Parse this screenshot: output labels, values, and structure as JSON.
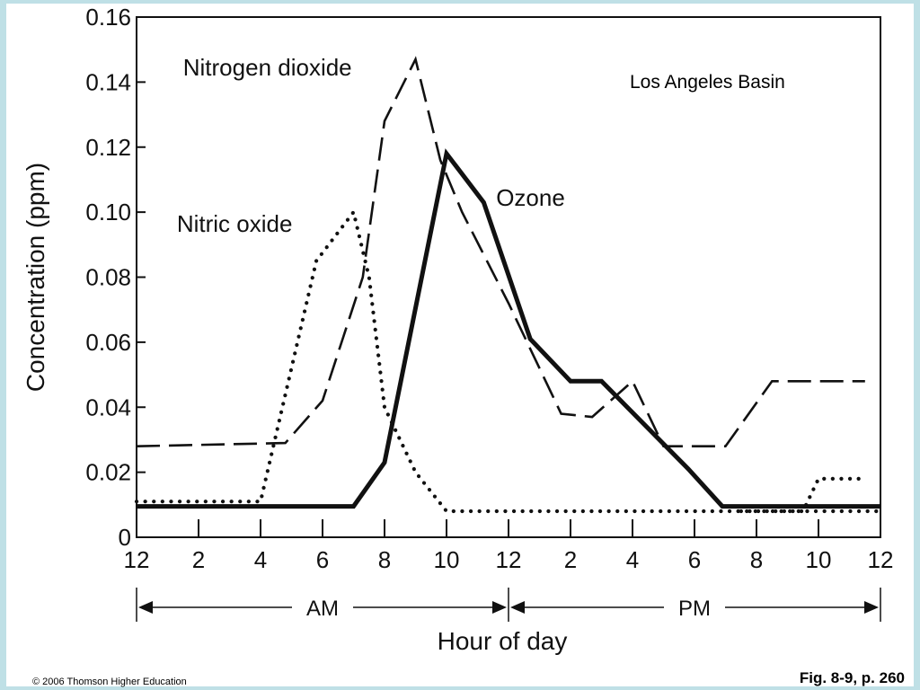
{
  "chart_data": {
    "type": "line",
    "title": "Los Angeles Basin",
    "xlabel": "Hour of day",
    "ylabel": "Concentration (ppm)",
    "xlim": [
      0,
      24
    ],
    "ylim": [
      0,
      0.16
    ],
    "x_tick_values": [
      0,
      2,
      4,
      6,
      8,
      10,
      12,
      14,
      16,
      18,
      20,
      22,
      24
    ],
    "x_tick_labels": [
      "12",
      "2",
      "4",
      "6",
      "8",
      "10",
      "12",
      "2",
      "4",
      "6",
      "8",
      "10",
      "12"
    ],
    "y_ticks": [
      0,
      0.02,
      0.04,
      0.06,
      0.08,
      0.1,
      0.12,
      0.14,
      0.16
    ],
    "y_tick_labels": [
      "0",
      "0.02",
      "0.04",
      "0.06",
      "0.08",
      "0.10",
      "0.12",
      "0.14",
      "0.16"
    ],
    "periods": [
      {
        "label": "AM",
        "from": 0,
        "to": 12
      },
      {
        "label": "PM",
        "from": 12,
        "to": 24
      }
    ],
    "grid": false,
    "series": [
      {
        "name": "Nitrogen dioxide",
        "style": "dashed",
        "label_at": [
          1.5,
          0.142
        ],
        "points": [
          [
            0,
            0.028
          ],
          [
            4.8,
            0.029
          ],
          [
            6,
            0.042
          ],
          [
            7.3,
            0.08
          ],
          [
            8,
            0.128
          ],
          [
            9,
            0.147
          ],
          [
            9.8,
            0.116
          ],
          [
            10.5,
            0.1
          ],
          [
            12,
            0.072
          ],
          [
            13.7,
            0.038
          ],
          [
            14.7,
            0.037
          ],
          [
            16,
            0.048
          ],
          [
            17,
            0.028
          ],
          [
            19,
            0.028
          ],
          [
            20.5,
            0.048
          ],
          [
            23.5,
            0.048
          ]
        ]
      },
      {
        "name": "Ozone",
        "style": "solid",
        "label_at": [
          11.6,
          0.102
        ],
        "points": [
          [
            0,
            0.0095
          ],
          [
            7,
            0.0095
          ],
          [
            8,
            0.023
          ],
          [
            10,
            0.118
          ],
          [
            11.2,
            0.103
          ],
          [
            12.7,
            0.061
          ],
          [
            14,
            0.048
          ],
          [
            15,
            0.048
          ],
          [
            17.8,
            0.021
          ],
          [
            18.9,
            0.0095
          ],
          [
            24,
            0.0095
          ]
        ]
      },
      {
        "name": "Nitric oxide",
        "style": "dotted",
        "label_at": [
          1.3,
          0.094
        ],
        "points": [
          [
            0,
            0.011
          ],
          [
            4,
            0.011
          ],
          [
            5.8,
            0.085
          ],
          [
            7,
            0.1
          ],
          [
            7.5,
            0.08
          ],
          [
            8,
            0.04
          ],
          [
            9,
            0.02
          ],
          [
            10,
            0.008
          ],
          [
            24,
            0.008
          ]
        ],
        "points_tail": [
          [
            19.5,
            0.008
          ],
          [
            21.5,
            0.008
          ],
          [
            22,
            0.018
          ],
          [
            23.5,
            0.018
          ]
        ]
      }
    ]
  },
  "footer": {
    "copyright": "© 2006 Thomson Higher Education",
    "figure_ref": "Fig. 8-9, p. 260"
  },
  "colors": {
    "frame": "#bfe0e6",
    "ink": "#111111"
  }
}
